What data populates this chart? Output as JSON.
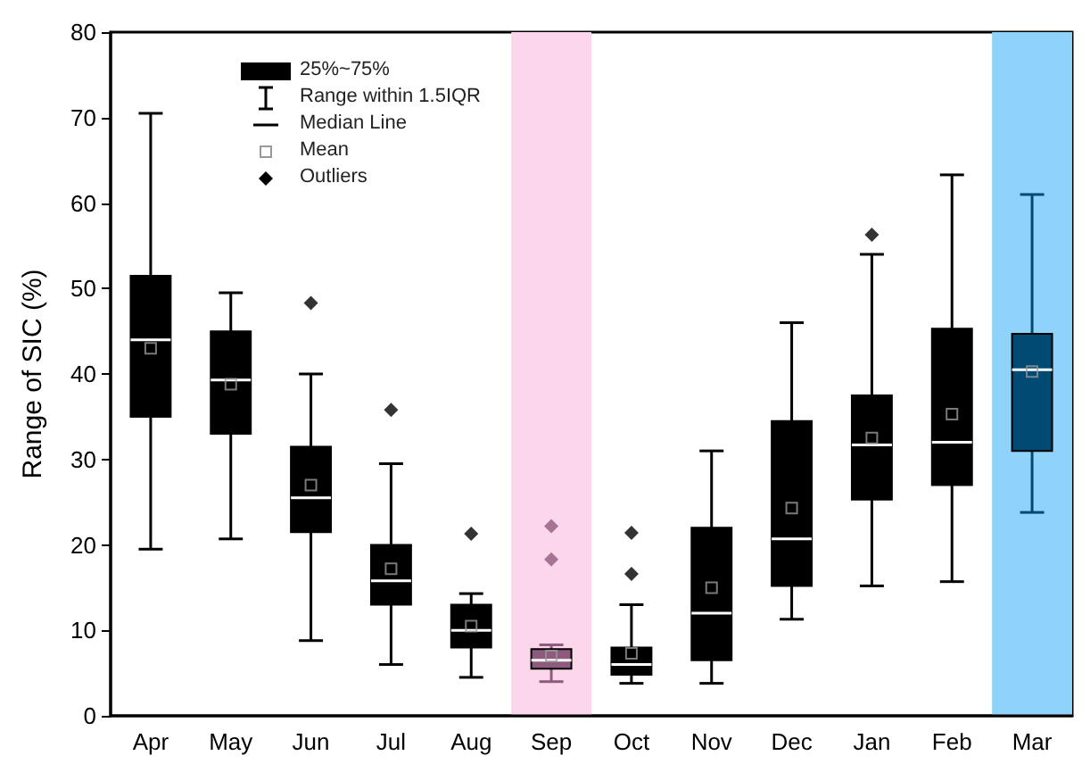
{
  "chart_data": {
    "type": "box",
    "ylabel": "Range of SIC (%)",
    "categories": [
      "Apr",
      "May",
      "Jun",
      "Jul",
      "Aug",
      "Sep",
      "Oct",
      "Nov",
      "Dec",
      "Jan",
      "Feb",
      "Mar"
    ],
    "series": [
      {
        "name": "25%~75%",
        "colors": [
          "#000000",
          "#000000",
          "#000000",
          "#000000",
          "#000000",
          "#8e5a7e",
          "#000000",
          "#000000",
          "#000000",
          "#000000",
          "#000000",
          "#004a73"
        ],
        "boxes": [
          {
            "low": 19.5,
            "q1": 35,
            "median": 44,
            "q3": 51.5,
            "high": 70.5,
            "mean": 43
          },
          {
            "low": 20.7,
            "q1": 33,
            "median": 39.3,
            "q3": 45,
            "high": 49.5,
            "mean": 38.8
          },
          {
            "low": 8.8,
            "q1": 21.5,
            "median": 25.5,
            "q3": 31.5,
            "high": 40,
            "mean": 27,
            "outliers": [
              48.3
            ]
          },
          {
            "low": 6,
            "q1": 13,
            "median": 15.8,
            "q3": 20,
            "high": 29.5,
            "mean": 17.2,
            "outliers": [
              35.8
            ]
          },
          {
            "low": 4.5,
            "q1": 8,
            "median": 10,
            "q3": 13,
            "high": 14.3,
            "mean": 10.5,
            "outliers": [
              21.3
            ]
          },
          {
            "low": 4,
            "q1": 5.5,
            "median": 6.5,
            "q3": 7.8,
            "high": 8.3,
            "mean": 7,
            "outliers": [
              18.3,
              22.2
            ]
          },
          {
            "low": 3.8,
            "q1": 4.8,
            "median": 6,
            "q3": 8,
            "high": 13,
            "mean": 7.3,
            "outliers": [
              16.6,
              21.4
            ]
          },
          {
            "low": 3.8,
            "q1": 6.5,
            "median": 12,
            "q3": 22,
            "high": 31,
            "mean": 15
          },
          {
            "low": 11.3,
            "q1": 15.2,
            "median": 20.7,
            "q3": 34.5,
            "high": 46,
            "mean": 24.3
          },
          {
            "low": 15.2,
            "q1": 25.3,
            "median": 31.7,
            "q3": 37.5,
            "high": 54,
            "mean": 32.5,
            "outliers": [
              56.3
            ]
          },
          {
            "low": 15.7,
            "q1": 27,
            "median": 32,
            "q3": 45.3,
            "high": 63.3,
            "mean": 35.3
          },
          {
            "low": 23.8,
            "q1": 31,
            "median": 40.5,
            "q3": 44.7,
            "high": 61,
            "mean": 40.3
          }
        ]
      }
    ],
    "annotations": [
      "Range within 1.5IQR",
      "Median Line",
      "Mean",
      "Outliers"
    ],
    "bands": [
      {
        "axis": "x",
        "from": "Sep",
        "to": "Sep",
        "color": "#fcd6ea"
      },
      {
        "axis": "x",
        "from": "Mar",
        "to": "Mar",
        "color": "#8fd3fb"
      }
    ],
    "ylim": [
      0,
      80
    ],
    "yticks": [
      0,
      10,
      20,
      30,
      40,
      50,
      60,
      70,
      80
    ],
    "grid": false,
    "legend": "top left"
  }
}
